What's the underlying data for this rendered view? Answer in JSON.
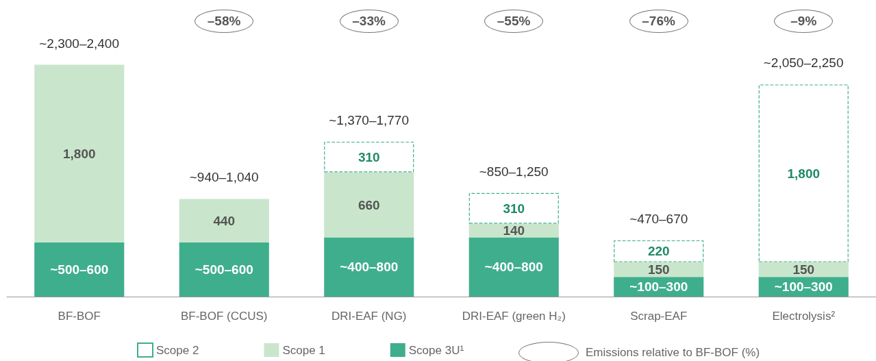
{
  "chart_data": {
    "type": "bar",
    "stacked": true,
    "categories": [
      "BF-BOF",
      "BF-BOF (CCUS)",
      "DRI-EAF (NG)",
      "DRI-EAF (green H₂)",
      "Scrap-EAF",
      "Electrolysis²"
    ],
    "series": [
      {
        "name": "Scope 3U¹",
        "color": "#3fae8c",
        "values": [
          550,
          550,
          600,
          600,
          200,
          200
        ],
        "value_labels": [
          "~500–600",
          "~500–600",
          "~400–800",
          "~400–800",
          "~100–300",
          "~100–300"
        ]
      },
      {
        "name": "Scope 1",
        "color": "#c9e6cc",
        "values": [
          1800,
          440,
          660,
          140,
          150,
          150
        ],
        "value_labels": [
          "1,800",
          "440",
          "660",
          "140",
          "150",
          "150"
        ]
      },
      {
        "name": "Scope 2",
        "color": "#3fae8c",
        "line_style": "dashed",
        "values": [
          null,
          null,
          310,
          310,
          220,
          1800
        ],
        "value_labels": [
          null,
          null,
          "310",
          "310",
          "220",
          "1,800"
        ]
      }
    ],
    "totals": [
      "~2,300–2,400",
      "~940–1,040",
      "~1,370–1,770",
      "~850–1,250",
      "~470–670",
      "~2,050–2,250"
    ],
    "annotations": [
      "–58%",
      "–33%",
      "–55%",
      "–76%",
      "–9%",
      "Emissions relative to BF-BOF (%)"
    ],
    "legend": "bottom"
  }
}
